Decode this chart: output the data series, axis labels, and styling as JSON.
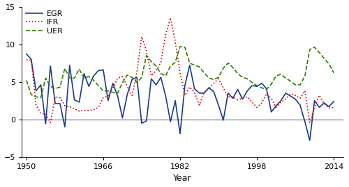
{
  "years": [
    1950,
    1951,
    1952,
    1953,
    1954,
    1955,
    1956,
    1957,
    1958,
    1959,
    1960,
    1961,
    1962,
    1963,
    1964,
    1965,
    1966,
    1967,
    1968,
    1969,
    1970,
    1971,
    1972,
    1973,
    1974,
    1975,
    1976,
    1977,
    1978,
    1979,
    1980,
    1981,
    1982,
    1983,
    1984,
    1985,
    1986,
    1987,
    1988,
    1989,
    1990,
    1991,
    1992,
    1993,
    1994,
    1995,
    1996,
    1997,
    1998,
    1999,
    2000,
    2001,
    2002,
    2003,
    2004,
    2005,
    2006,
    2007,
    2008,
    2009,
    2010,
    2011,
    2012,
    2013,
    2014
  ],
  "EGR": [
    8.7,
    8.0,
    3.8,
    4.6,
    -0.6,
    7.1,
    2.1,
    2.1,
    -1.0,
    7.2,
    2.6,
    2.3,
    6.1,
    4.4,
    5.8,
    6.5,
    6.6,
    2.5,
    4.8,
    3.1,
    0.2,
    3.3,
    5.3,
    5.6,
    -0.5,
    -0.2,
    5.4,
    4.6,
    5.6,
    3.1,
    -0.3,
    2.5,
    -1.9,
    4.5,
    7.2,
    4.1,
    3.5,
    3.5,
    4.2,
    3.7,
    1.9,
    -0.1,
    3.5,
    2.8,
    4.0,
    2.7,
    3.8,
    4.5,
    4.4,
    4.8,
    4.1,
    1.0,
    1.8,
    2.5,
    3.5,
    3.1,
    2.7,
    1.9,
    -0.3,
    -2.8,
    2.5,
    1.6,
    2.2,
    1.7,
    2.4
  ],
  "IFR": [
    7.9,
    7.9,
    1.9,
    0.8,
    0.7,
    -0.4,
    3.0,
    2.9,
    1.8,
    1.7,
    1.4,
    1.1,
    1.2,
    1.2,
    1.3,
    1.6,
    2.9,
    3.1,
    4.2,
    5.5,
    5.7,
    4.4,
    3.2,
    6.2,
    11.0,
    9.1,
    5.8,
    6.5,
    7.6,
    11.3,
    13.5,
    10.3,
    6.2,
    3.2,
    4.3,
    3.6,
    1.9,
    3.6,
    4.1,
    4.8,
    5.4,
    4.2,
    3.0,
    3.0,
    2.6,
    2.8,
    3.0,
    2.3,
    1.6,
    2.2,
    3.4,
    2.8,
    1.6,
    2.3,
    2.7,
    3.4,
    3.2,
    2.8,
    3.8,
    -0.4,
    1.6,
    3.2,
    2.1,
    1.5,
    1.6
  ],
  "UER": [
    5.2,
    3.3,
    3.0,
    2.9,
    5.5,
    4.4,
    4.1,
    4.3,
    6.8,
    5.5,
    5.5,
    6.7,
    5.5,
    5.7,
    5.2,
    4.5,
    3.8,
    3.8,
    3.6,
    3.5,
    4.9,
    5.9,
    5.6,
    4.9,
    5.6,
    8.5,
    7.7,
    7.1,
    6.1,
    5.8,
    7.1,
    7.6,
    9.7,
    9.6,
    7.5,
    7.2,
    7.0,
    6.2,
    5.5,
    5.3,
    5.6,
    6.8,
    7.5,
    6.9,
    6.1,
    5.6,
    5.4,
    4.9,
    4.5,
    4.2,
    4.0,
    4.7,
    5.8,
    6.0,
    5.5,
    5.1,
    4.6,
    4.6,
    5.8,
    9.3,
    9.6,
    8.9,
    8.1,
    7.4,
    6.2
  ],
  "egr_color": "#1a3a8c",
  "ifr_color": "#cc0000",
  "uer_color": "#2e7d00",
  "hline_color": "#808080",
  "xlabel": "Year",
  "xlim": [
    1949,
    2016
  ],
  "ylim": [
    -5,
    15
  ],
  "yticks": [
    -5,
    0,
    5,
    10,
    15
  ],
  "xticks": [
    1950,
    1966,
    1982,
    1998,
    2014
  ]
}
